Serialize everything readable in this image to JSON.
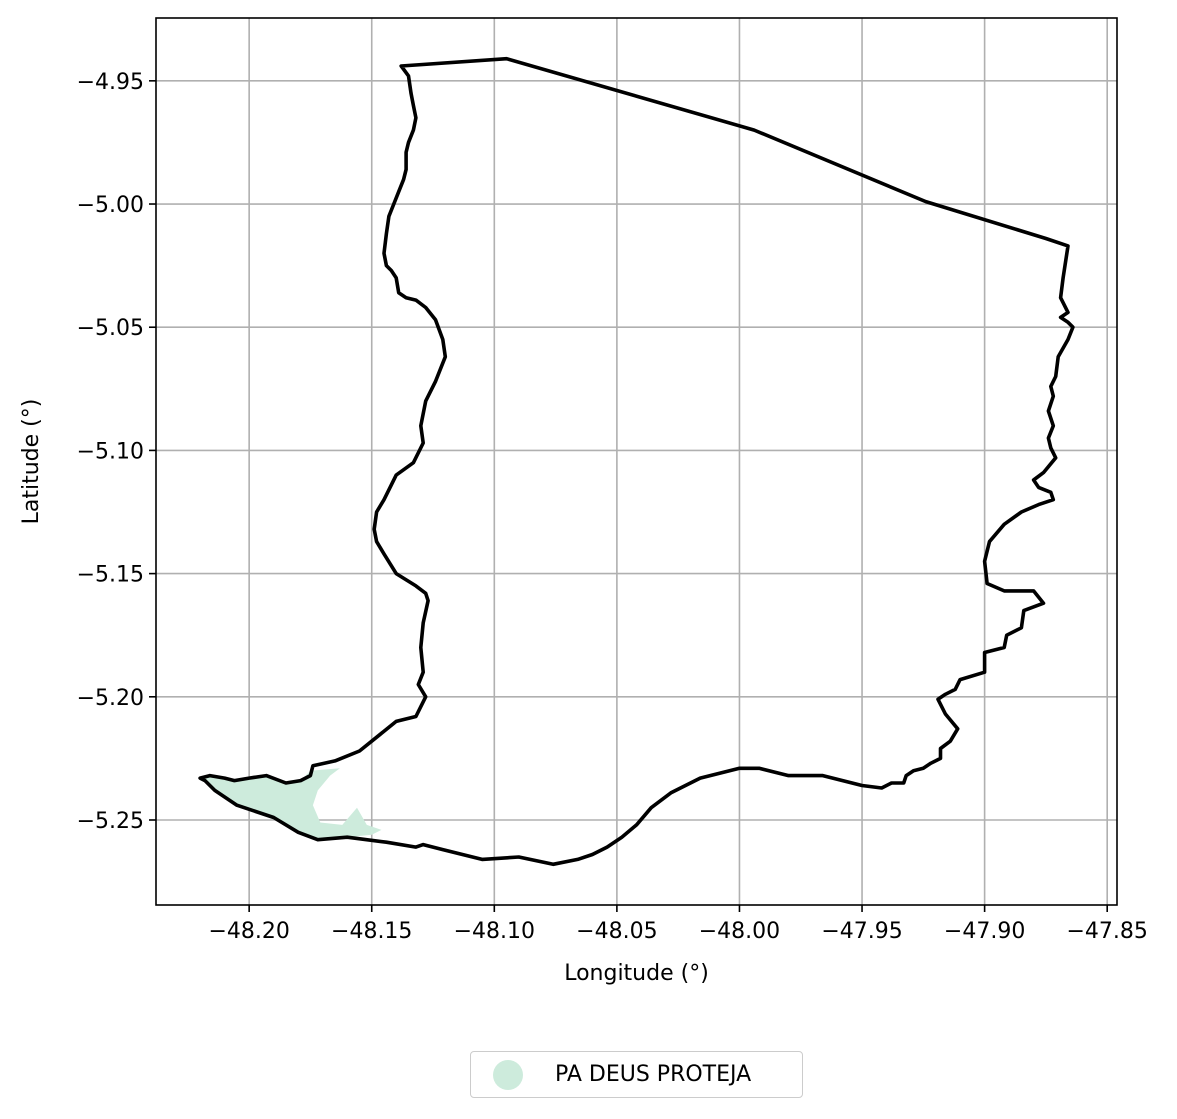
{
  "chart_data": {
    "type": "map",
    "xlabel": "Longitude (°)",
    "ylabel": "Latitude (°)",
    "xlim": [
      -48.238,
      -47.846
    ],
    "ylim": [
      -5.2845,
      -4.9245
    ],
    "grid": true,
    "x_ticks": [
      -48.2,
      -48.15,
      -48.1,
      -48.05,
      -48.0,
      -47.95,
      -47.9,
      -47.85
    ],
    "x_tick_labels": [
      "−48.20",
      "−48.15",
      "−48.10",
      "−48.05",
      "−48.00",
      "−47.95",
      "−47.90",
      "−47.85"
    ],
    "y_ticks": [
      -4.95,
      -5.0,
      -5.05,
      -5.1,
      -5.15,
      -5.2,
      -5.25
    ],
    "y_tick_labels": [
      "−4.95",
      "−5.00",
      "−5.05",
      "−5.10",
      "−5.15",
      "−5.20",
      "−5.25"
    ],
    "boundary": {
      "color": "#000000",
      "coordinates": [
        [
          -48.095,
          -4.941
        ],
        [
          -47.994,
          -4.97
        ],
        [
          -47.924,
          -4.999
        ],
        [
          -47.875,
          -5.014
        ],
        [
          -47.866,
          -5.017
        ],
        [
          -47.868,
          -5.03
        ],
        [
          -47.869,
          -5.038
        ],
        [
          -47.866,
          -5.044
        ],
        [
          -47.869,
          -5.046
        ],
        [
          -47.866,
          -5.048
        ],
        [
          -47.864,
          -5.05
        ],
        [
          -47.866,
          -5.055
        ],
        [
          -47.87,
          -5.062
        ],
        [
          -47.871,
          -5.07
        ],
        [
          -47.873,
          -5.074
        ],
        [
          -47.872,
          -5.078
        ],
        [
          -47.874,
          -5.084
        ],
        [
          -47.872,
          -5.09
        ],
        [
          -47.874,
          -5.095
        ],
        [
          -47.873,
          -5.099
        ],
        [
          -47.871,
          -5.103
        ],
        [
          -47.876,
          -5.109
        ],
        [
          -47.88,
          -5.112
        ],
        [
          -47.878,
          -5.115
        ],
        [
          -47.873,
          -5.117
        ],
        [
          -47.872,
          -5.12
        ],
        [
          -47.878,
          -5.122
        ],
        [
          -47.885,
          -5.125
        ],
        [
          -47.892,
          -5.13
        ],
        [
          -47.898,
          -5.137
        ],
        [
          -47.9,
          -5.145
        ],
        [
          -47.899,
          -5.154
        ],
        [
          -47.892,
          -5.157
        ],
        [
          -47.88,
          -5.157
        ],
        [
          -47.876,
          -5.162
        ],
        [
          -47.884,
          -5.165
        ],
        [
          -47.885,
          -5.172
        ],
        [
          -47.891,
          -5.175
        ],
        [
          -47.892,
          -5.18
        ],
        [
          -47.9,
          -5.182
        ],
        [
          -47.9,
          -5.19
        ],
        [
          -47.91,
          -5.193
        ],
        [
          -47.912,
          -5.197
        ],
        [
          -47.916,
          -5.199
        ],
        [
          -47.919,
          -5.201
        ],
        [
          -47.916,
          -5.207
        ],
        [
          -47.911,
          -5.213
        ],
        [
          -47.914,
          -5.218
        ],
        [
          -47.918,
          -5.221
        ],
        [
          -47.918,
          -5.225
        ],
        [
          -47.922,
          -5.227
        ],
        [
          -47.925,
          -5.229
        ],
        [
          -47.929,
          -5.23
        ],
        [
          -47.932,
          -5.232
        ],
        [
          -47.933,
          -5.235
        ],
        [
          -47.938,
          -5.235
        ],
        [
          -47.942,
          -5.237
        ],
        [
          -47.95,
          -5.236
        ],
        [
          -47.966,
          -5.232
        ],
        [
          -47.98,
          -5.232
        ],
        [
          -47.992,
          -5.229
        ],
        [
          -48.0,
          -5.229
        ],
        [
          -48.016,
          -5.233
        ],
        [
          -48.028,
          -5.239
        ],
        [
          -48.036,
          -5.245
        ],
        [
          -48.042,
          -5.252
        ],
        [
          -48.048,
          -5.257
        ],
        [
          -48.054,
          -5.261
        ],
        [
          -48.06,
          -5.264
        ],
        [
          -48.066,
          -5.266
        ],
        [
          -48.076,
          -5.268
        ],
        [
          -48.09,
          -5.265
        ],
        [
          -48.105,
          -5.266
        ],
        [
          -48.121,
          -5.262
        ],
        [
          -48.129,
          -5.26
        ],
        [
          -48.132,
          -5.261
        ],
        [
          -48.144,
          -5.259
        ],
        [
          -48.16,
          -5.257
        ],
        [
          -48.172,
          -5.258
        ],
        [
          -48.18,
          -5.255
        ],
        [
          -48.19,
          -5.249
        ],
        [
          -48.205,
          -5.244
        ],
        [
          -48.214,
          -5.238
        ],
        [
          -48.218,
          -5.234
        ],
        [
          -48.22,
          -5.233
        ],
        [
          -48.216,
          -5.232
        ],
        [
          -48.21,
          -5.233
        ],
        [
          -48.206,
          -5.234
        ],
        [
          -48.2,
          -5.233
        ],
        [
          -48.193,
          -5.232
        ],
        [
          -48.185,
          -5.235
        ],
        [
          -48.179,
          -5.234
        ],
        [
          -48.175,
          -5.232
        ],
        [
          -48.174,
          -5.228
        ],
        [
          -48.165,
          -5.226
        ],
        [
          -48.155,
          -5.222
        ],
        [
          -48.15,
          -5.218
        ],
        [
          -48.14,
          -5.21
        ],
        [
          -48.132,
          -5.208
        ],
        [
          -48.128,
          -5.2
        ],
        [
          -48.131,
          -5.195
        ],
        [
          -48.129,
          -5.19
        ],
        [
          -48.13,
          -5.18
        ],
        [
          -48.129,
          -5.17
        ],
        [
          -48.127,
          -5.161
        ],
        [
          -48.128,
          -5.158
        ],
        [
          -48.132,
          -5.155
        ],
        [
          -48.14,
          -5.15
        ],
        [
          -48.145,
          -5.142
        ],
        [
          -48.148,
          -5.137
        ],
        [
          -48.149,
          -5.132
        ],
        [
          -48.148,
          -5.125
        ],
        [
          -48.145,
          -5.12
        ],
        [
          -48.14,
          -5.11
        ],
        [
          -48.133,
          -5.105
        ],
        [
          -48.129,
          -5.097
        ],
        [
          -48.13,
          -5.09
        ],
        [
          -48.128,
          -5.08
        ],
        [
          -48.124,
          -5.072
        ],
        [
          -48.12,
          -5.062
        ],
        [
          -48.121,
          -5.055
        ],
        [
          -48.124,
          -5.047
        ],
        [
          -48.128,
          -5.042
        ],
        [
          -48.132,
          -5.039
        ],
        [
          -48.136,
          -5.038
        ],
        [
          -48.139,
          -5.036
        ],
        [
          -48.14,
          -5.03
        ],
        [
          -48.142,
          -5.027
        ],
        [
          -48.144,
          -5.025
        ],
        [
          -48.145,
          -5.02
        ],
        [
          -48.144,
          -5.012
        ],
        [
          -48.143,
          -5.005
        ],
        [
          -48.141,
          -5.0
        ],
        [
          -48.139,
          -4.995
        ],
        [
          -48.137,
          -4.99
        ],
        [
          -48.136,
          -4.986
        ],
        [
          -48.136,
          -4.982
        ],
        [
          -48.136,
          -4.979
        ],
        [
          -48.135,
          -4.975
        ],
        [
          -48.133,
          -4.97
        ],
        [
          -48.132,
          -4.965
        ],
        [
          -48.133,
          -4.96
        ],
        [
          -48.134,
          -4.955
        ],
        [
          -48.135,
          -4.948
        ],
        [
          -48.138,
          -4.944
        ],
        [
          -48.095,
          -4.941
        ]
      ]
    },
    "region": {
      "name": "PA DEUS PROTEJA",
      "color": "#cdebdc",
      "coordinates": [
        [
          -48.218,
          -5.234
        ],
        [
          -48.214,
          -5.238
        ],
        [
          -48.205,
          -5.244
        ],
        [
          -48.19,
          -5.249
        ],
        [
          -48.18,
          -5.255
        ],
        [
          -48.172,
          -5.258
        ],
        [
          -48.16,
          -5.257
        ],
        [
          -48.15,
          -5.256
        ],
        [
          -48.146,
          -5.254
        ],
        [
          -48.152,
          -5.252
        ],
        [
          -48.156,
          -5.245
        ],
        [
          -48.162,
          -5.252
        ],
        [
          -48.171,
          -5.251
        ],
        [
          -48.174,
          -5.244
        ],
        [
          -48.172,
          -5.238
        ],
        [
          -48.167,
          -5.232
        ],
        [
          -48.163,
          -5.229
        ],
        [
          -48.175,
          -5.23
        ],
        [
          -48.179,
          -5.234
        ],
        [
          -48.185,
          -5.235
        ],
        [
          -48.193,
          -5.232
        ],
        [
          -48.2,
          -5.233
        ],
        [
          -48.206,
          -5.234
        ],
        [
          -48.21,
          -5.233
        ],
        [
          -48.216,
          -5.232
        ],
        [
          -48.22,
          -5.233
        ],
        [
          -48.218,
          -5.234
        ]
      ]
    },
    "legend": {
      "position": "bottom-center",
      "entries": [
        {
          "label": "PA DEUS PROTEJA",
          "color": "#cdebdc"
        }
      ]
    }
  }
}
